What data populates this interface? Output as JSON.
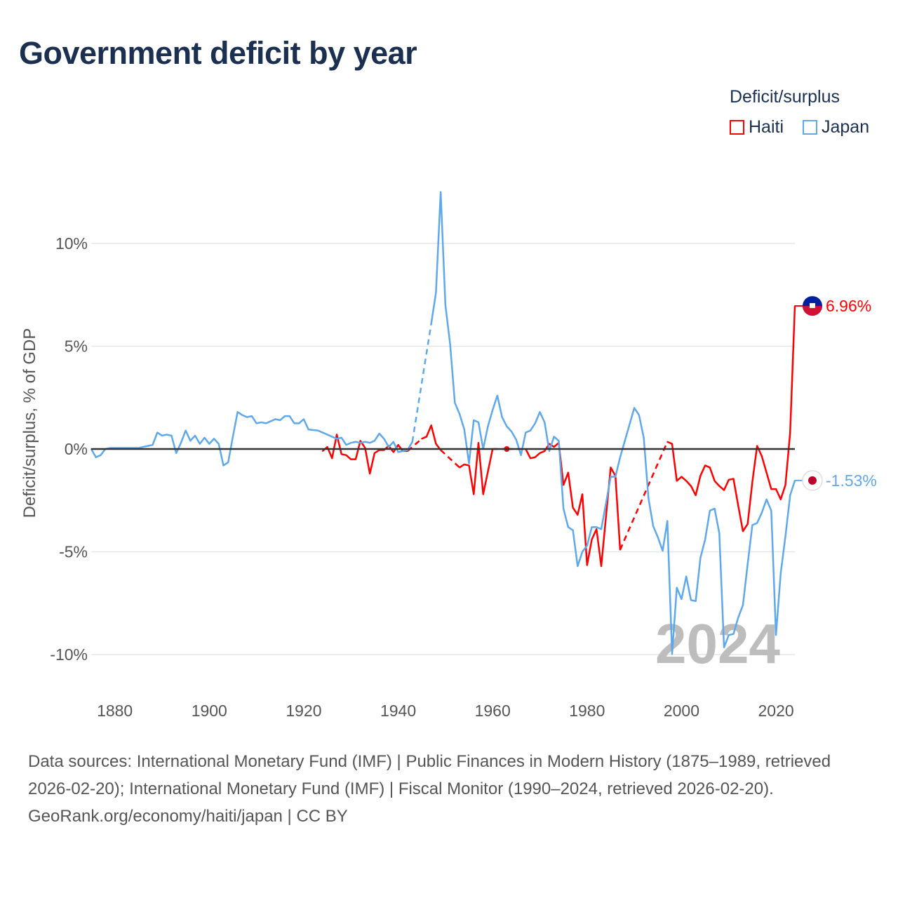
{
  "chart_data": {
    "type": "line",
    "title": "Government deficit by year",
    "ylabel": "Deficit/surplus, % of GDP",
    "xlabel": "",
    "xlim": [
      1875,
      2024
    ],
    "ylim": [
      -11.5,
      13.5
    ],
    "x_ticks": [
      1880,
      1900,
      1920,
      1940,
      1960,
      1980,
      2000,
      2020
    ],
    "y_ticks": [
      10,
      5,
      0,
      -5,
      -10
    ],
    "y_tick_labels": [
      "10%",
      "5%",
      "0%",
      "-5%",
      "-10%"
    ],
    "grid": true,
    "legend_title": "Deficit/surplus",
    "legend_position": "top-right",
    "watermark": "2024",
    "series": [
      {
        "name": "Haiti",
        "color": "#ff0000",
        "end_label": "6.96%",
        "points": [
          [
            1924,
            -0.1
          ],
          [
            1925,
            0.1
          ],
          [
            1926,
            -0.45
          ],
          [
            1927,
            0.7
          ],
          [
            1928,
            -0.25
          ],
          [
            1929,
            -0.3
          ],
          [
            1930,
            -0.5
          ],
          [
            1931,
            -0.5
          ],
          [
            1932,
            0.4
          ],
          [
            1933,
            0.05
          ],
          [
            1934,
            -1.2
          ],
          [
            1935,
            -0.2
          ],
          [
            1936,
            -0.05
          ],
          [
            1937,
            -0.05
          ],
          [
            1938,
            0.15
          ],
          [
            1939,
            -0.15
          ],
          [
            1940,
            0.2
          ],
          [
            1941,
            -0.1
          ],
          [
            1942,
            -0.1
          ],
          [
            1945,
            0.5
          ],
          [
            1946,
            0.6
          ],
          [
            1947,
            1.15
          ],
          [
            1948,
            0.25
          ],
          [
            1949,
            -0.05
          ],
          [
            1953,
            -0.9
          ],
          [
            1954,
            -0.75
          ],
          [
            1955,
            -0.8
          ],
          [
            1956,
            -2.2
          ],
          [
            1957,
            0.3
          ],
          [
            1958,
            -2.2
          ],
          [
            1959,
            -1.1
          ],
          [
            1960,
            0
          ],
          [
            1963,
            0
          ],
          [
            1967,
            0
          ],
          [
            1968,
            -0.45
          ],
          [
            1969,
            -0.4
          ],
          [
            1970,
            -0.2
          ],
          [
            1971,
            -0.1
          ],
          [
            1972,
            0.25
          ],
          [
            1973,
            0.1
          ],
          [
            1974,
            0.3
          ],
          [
            1975,
            -1.75
          ],
          [
            1976,
            -1.15
          ],
          [
            1977,
            -2.85
          ],
          [
            1978,
            -3.2
          ],
          [
            1979,
            -2.2
          ],
          [
            1980,
            -5.65
          ],
          [
            1981,
            -4.4
          ],
          [
            1982,
            -3.9
          ],
          [
            1983,
            -5.7
          ],
          [
            1984,
            -3.3
          ],
          [
            1985,
            -0.9
          ],
          [
            1986,
            -1.3
          ],
          [
            1987,
            -4.9
          ],
          [
            1997,
            0.35
          ],
          [
            1998,
            0.25
          ],
          [
            1999,
            -1.55
          ],
          [
            2000,
            -1.35
          ],
          [
            2001,
            -1.55
          ],
          [
            2002,
            -1.8
          ],
          [
            2003,
            -2.25
          ],
          [
            2004,
            -1.3
          ],
          [
            2005,
            -0.8
          ],
          [
            2006,
            -0.9
          ],
          [
            2007,
            -1.55
          ],
          [
            2008,
            -1.8
          ],
          [
            2009,
            -2.0
          ],
          [
            2010,
            -1.5
          ],
          [
            2011,
            -1.45
          ],
          [
            2012,
            -2.75
          ],
          [
            2013,
            -4.0
          ],
          [
            2014,
            -3.65
          ],
          [
            2015,
            -1.6
          ],
          [
            2016,
            0.15
          ],
          [
            2017,
            -0.35
          ],
          [
            2018,
            -1.15
          ],
          [
            2019,
            -1.95
          ],
          [
            2020,
            -1.95
          ],
          [
            2021,
            -2.45
          ],
          [
            2022,
            -1.75
          ],
          [
            2023,
            0.8
          ],
          [
            2024,
            6.96
          ]
        ]
      },
      {
        "name": "Japan",
        "color": "#5ea8ec",
        "end_label": "-1.53%",
        "points": [
          [
            1875,
            0
          ],
          [
            1876,
            -0.4
          ],
          [
            1877,
            -0.3
          ],
          [
            1878,
            0
          ],
          [
            1879,
            0.05
          ],
          [
            1880,
            0.05
          ],
          [
            1881,
            0.05
          ],
          [
            1882,
            0.05
          ],
          [
            1883,
            0.05
          ],
          [
            1884,
            0.05
          ],
          [
            1885,
            0.05
          ],
          [
            1886,
            0.1
          ],
          [
            1887,
            0.15
          ],
          [
            1888,
            0.2
          ],
          [
            1889,
            0.8
          ],
          [
            1890,
            0.65
          ],
          [
            1891,
            0.7
          ],
          [
            1892,
            0.65
          ],
          [
            1893,
            -0.2
          ],
          [
            1894,
            0.3
          ],
          [
            1895,
            0.9
          ],
          [
            1896,
            0.4
          ],
          [
            1897,
            0.65
          ],
          [
            1898,
            0.25
          ],
          [
            1899,
            0.55
          ],
          [
            1900,
            0.25
          ],
          [
            1901,
            0.5
          ],
          [
            1902,
            0.25
          ],
          [
            1903,
            -0.8
          ],
          [
            1904,
            -0.65
          ],
          [
            1905,
            0.6
          ],
          [
            1906,
            1.8
          ],
          [
            1907,
            1.65
          ],
          [
            1908,
            1.55
          ],
          [
            1909,
            1.6
          ],
          [
            1910,
            1.25
          ],
          [
            1911,
            1.3
          ],
          [
            1912,
            1.25
          ],
          [
            1913,
            1.35
          ],
          [
            1914,
            1.45
          ],
          [
            1915,
            1.4
          ],
          [
            1916,
            1.6
          ],
          [
            1917,
            1.6
          ],
          [
            1918,
            1.25
          ],
          [
            1919,
            1.25
          ],
          [
            1920,
            1.45
          ],
          [
            1921,
            0.95
          ],
          [
            1922,
            0.92
          ],
          [
            1923,
            0.9
          ],
          [
            1924,
            0.8
          ],
          [
            1925,
            0.7
          ],
          [
            1926,
            0.6
          ],
          [
            1927,
            0.5
          ],
          [
            1928,
            0.55
          ],
          [
            1929,
            0.2
          ],
          [
            1930,
            0.3
          ],
          [
            1931,
            0.35
          ],
          [
            1932,
            0.3
          ],
          [
            1933,
            0.35
          ],
          [
            1934,
            0.3
          ],
          [
            1935,
            0.4
          ],
          [
            1936,
            0.75
          ],
          [
            1937,
            0.5
          ],
          [
            1938,
            0.1
          ],
          [
            1939,
            0.35
          ],
          [
            1940,
            -0.15
          ],
          [
            1941,
            -0.1
          ],
          [
            1942,
            -0.05
          ],
          [
            1943,
            0.35
          ],
          [
            1947,
            6.1
          ],
          [
            1948,
            7.6
          ],
          [
            1949,
            12.5
          ],
          [
            1950,
            7.0
          ],
          [
            1951,
            5.1
          ],
          [
            1952,
            2.25
          ],
          [
            1953,
            1.7
          ],
          [
            1954,
            0.95
          ],
          [
            1955,
            -0.7
          ],
          [
            1956,
            1.4
          ],
          [
            1957,
            1.3
          ],
          [
            1958,
            0
          ],
          [
            1959,
            1.1
          ],
          [
            1960,
            1.9
          ],
          [
            1961,
            2.6
          ],
          [
            1962,
            1.55
          ],
          [
            1963,
            1.1
          ],
          [
            1964,
            0.85
          ],
          [
            1965,
            0.45
          ],
          [
            1966,
            -0.3
          ],
          [
            1967,
            0.8
          ],
          [
            1968,
            0.9
          ],
          [
            1969,
            1.25
          ],
          [
            1970,
            1.8
          ],
          [
            1971,
            1.3
          ],
          [
            1972,
            -0.1
          ],
          [
            1973,
            0.6
          ],
          [
            1974,
            0.4
          ],
          [
            1975,
            -2.9
          ],
          [
            1976,
            -3.8
          ],
          [
            1977,
            -3.95
          ],
          [
            1978,
            -5.7
          ],
          [
            1979,
            -5.0
          ],
          [
            1980,
            -4.7
          ],
          [
            1981,
            -3.8
          ],
          [
            1982,
            -3.8
          ],
          [
            1983,
            -3.9
          ],
          [
            1984,
            -2.65
          ],
          [
            1985,
            -1.35
          ],
          [
            1986,
            -1.35
          ],
          [
            1987,
            -0.4
          ],
          [
            1988,
            0.4
          ],
          [
            1989,
            1.2
          ],
          [
            1990,
            2.0
          ],
          [
            1991,
            1.65
          ],
          [
            1992,
            0.55
          ],
          [
            1993,
            -2.4
          ],
          [
            1994,
            -3.75
          ],
          [
            1995,
            -4.3
          ],
          [
            1996,
            -4.95
          ],
          [
            1997,
            -3.5
          ],
          [
            1998,
            -9.97
          ],
          [
            1999,
            -6.75
          ],
          [
            2000,
            -7.3
          ],
          [
            2001,
            -6.2
          ],
          [
            2002,
            -7.35
          ],
          [
            2003,
            -7.4
          ],
          [
            2004,
            -5.3
          ],
          [
            2005,
            -4.4
          ],
          [
            2006,
            -3.0
          ],
          [
            2007,
            -2.9
          ],
          [
            2008,
            -4.1
          ],
          [
            2009,
            -9.65
          ],
          [
            2010,
            -9.05
          ],
          [
            2011,
            -9.0
          ],
          [
            2012,
            -8.2
          ],
          [
            2013,
            -7.6
          ],
          [
            2014,
            -5.6
          ],
          [
            2015,
            -3.7
          ],
          [
            2016,
            -3.6
          ],
          [
            2017,
            -3.1
          ],
          [
            2018,
            -2.45
          ],
          [
            2019,
            -3.0
          ],
          [
            2020,
            -9.05
          ],
          [
            2021,
            -6.05
          ],
          [
            2022,
            -4.25
          ],
          [
            2023,
            -2.25
          ],
          [
            2024,
            -1.53
          ]
        ]
      }
    ]
  },
  "footer": {
    "sources": "Data sources: International Monetary Fund (IMF) | Public Finances in Modern History (1875–1989, retrieved 2026-02-20); International Monetary Fund (IMF) | Fiscal Monitor (1990–2024, retrieved 2026-02-20).",
    "credit": "GeoRank.org/economy/haiti/japan | CC BY"
  }
}
